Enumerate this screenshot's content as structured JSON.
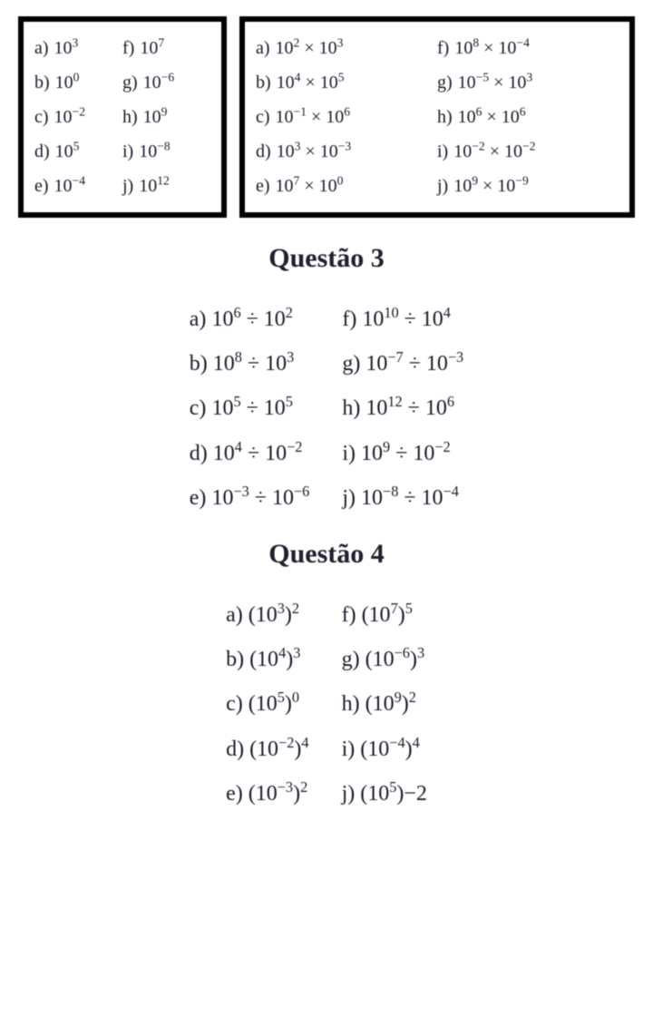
{
  "colors": {
    "border": "#000000",
    "text": "#1a1a2a",
    "background": "#ffffff"
  },
  "box1": {
    "left": [
      {
        "label": "a)",
        "base": "10",
        "exp": "3"
      },
      {
        "label": "b)",
        "base": "10",
        "exp": "0"
      },
      {
        "label": "c)",
        "base": "10",
        "exp": "−2"
      },
      {
        "label": "d)",
        "base": "10",
        "exp": "5"
      },
      {
        "label": "e)",
        "base": "10",
        "exp": "−4"
      }
    ],
    "right": [
      {
        "label": "f)",
        "base": "10",
        "exp": "7"
      },
      {
        "label": "g)",
        "base": "10",
        "exp": "−6"
      },
      {
        "label": "h)",
        "base": "10",
        "exp": "9"
      },
      {
        "label": "i)",
        "base": "10",
        "exp": "−8"
      },
      {
        "label": "j)",
        "base": "10",
        "exp": "12"
      }
    ]
  },
  "box2": {
    "op": "×",
    "left": [
      {
        "label": "a)",
        "a_base": "10",
        "a_exp": "2",
        "b_base": "10",
        "b_exp": "3"
      },
      {
        "label": "b)",
        "a_base": "10",
        "a_exp": "4",
        "b_base": "10",
        "b_exp": "5"
      },
      {
        "label": "c)",
        "a_base": "10",
        "a_exp": "−1",
        "b_base": "10",
        "b_exp": "6"
      },
      {
        "label": "d)",
        "a_base": "10",
        "a_exp": "3",
        "b_base": "10",
        "b_exp": "−3"
      },
      {
        "label": "e)",
        "a_base": "10",
        "a_exp": "7",
        "b_base": "10",
        "b_exp": "0"
      }
    ],
    "right": [
      {
        "label": "f)",
        "a_base": "10",
        "a_exp": "8",
        "b_base": "10",
        "b_exp": "−4"
      },
      {
        "label": "g)",
        "a_base": "10",
        "a_exp": "−5",
        "b_base": "10",
        "b_exp": "3"
      },
      {
        "label": "h)",
        "a_base": "10",
        "a_exp": "6",
        "b_base": "10",
        "b_exp": "6"
      },
      {
        "label": "i)",
        "a_base": "10",
        "a_exp": "−2",
        "b_base": "10",
        "b_exp": "−2"
      },
      {
        "label": "j)",
        "a_base": "10",
        "a_exp": "9",
        "b_base": "10",
        "b_exp": "−9"
      }
    ]
  },
  "q3": {
    "title": "Questão 3",
    "op": "÷",
    "left": [
      {
        "label": "a)",
        "a_base": "10",
        "a_exp": "6",
        "b_base": "10",
        "b_exp": "2"
      },
      {
        "label": "b)",
        "a_base": "10",
        "a_exp": "8",
        "b_base": "10",
        "b_exp": "3"
      },
      {
        "label": "c)",
        "a_base": "10",
        "a_exp": "5",
        "b_base": "10",
        "b_exp": "5"
      },
      {
        "label": "d)",
        "a_base": "10",
        "a_exp": "4",
        "b_base": "10",
        "b_exp": "−2"
      },
      {
        "label": "e)",
        "a_base": "10",
        "a_exp": "−3",
        "b_base": "10",
        "b_exp": "−6"
      }
    ],
    "right": [
      {
        "label": "f)",
        "a_base": "10",
        "a_exp": "10",
        "b_base": "10",
        "b_exp": "4"
      },
      {
        "label": "g)",
        "a_base": "10",
        "a_exp": "−7",
        "b_base": "10",
        "b_exp": "−3"
      },
      {
        "label": "h)",
        "a_base": "10",
        "a_exp": "12",
        "b_base": "10",
        "b_exp": "6"
      },
      {
        "label": "i)",
        "a_base": "10",
        "a_exp": "9",
        "b_base": "10",
        "b_exp": "−2"
      },
      {
        "label": "j)",
        "a_base": "10",
        "a_exp": "−8",
        "b_base": "10",
        "b_exp": "−4"
      }
    ]
  },
  "q4": {
    "title": "Questão  4",
    "left": [
      {
        "label": "a)",
        "inner_base": "10",
        "inner_exp": "3",
        "outer_exp": "2"
      },
      {
        "label": "b)",
        "inner_base": "10",
        "inner_exp": "4",
        "outer_exp": "3"
      },
      {
        "label": "c)",
        "inner_base": "10",
        "inner_exp": "5",
        "outer_exp": "0"
      },
      {
        "label": "d)",
        "inner_base": "10",
        "inner_exp": "−2",
        "outer_exp": "4"
      },
      {
        "label": "e)",
        "inner_base": "10",
        "inner_exp": "−3",
        "outer_exp": "2"
      }
    ],
    "right": [
      {
        "label": "f)",
        "inner_base": "10",
        "inner_exp": "7",
        "outer_exp": "5"
      },
      {
        "label": "g)",
        "inner_base": "10",
        "inner_exp": "−6",
        "outer_exp": "3"
      },
      {
        "label": "h)",
        "inner_base": "10",
        "inner_exp": "9",
        "outer_exp": "2"
      },
      {
        "label": "i)",
        "inner_base": "10",
        "inner_exp": "−4",
        "outer_exp": "4"
      },
      {
        "label": "j)",
        "inner_base": "10",
        "inner_exp": "5",
        "outer_exp": "−2",
        "outer_plain": true
      }
    ]
  }
}
